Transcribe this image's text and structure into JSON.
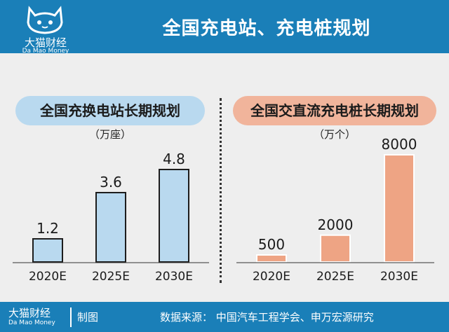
{
  "title": "全国充电站、充电桩规划",
  "brand": {
    "name_cn": "大猫财经",
    "name_en": "Da Mao Money"
  },
  "footer": {
    "credit": "制图",
    "source": "数据来源：  中国汽车工程学会、申万宏源研究"
  },
  "colors": {
    "header": "#1a7fb8",
    "left_bar": "#b9d9ef",
    "left_stroke": "#1d1d1d",
    "right_bar": "#eea484",
    "right_stroke": "#ffffff"
  },
  "chart_data": [
    {
      "type": "bar",
      "title": "全国充换电站长期规划",
      "unit": "（万座）",
      "categories": [
        "2020E",
        "2025E",
        "2030E"
      ],
      "values": [
        1.2,
        3.6,
        4.8
      ],
      "value_labels": [
        "1.2",
        "3.6",
        "4.8"
      ]
    },
    {
      "type": "bar",
      "title": "全国交直流充电桩长期规划",
      "unit": "（万个）",
      "categories": [
        "2020E",
        "2025E",
        "2030E"
      ],
      "values": [
        500,
        2000,
        8000
      ],
      "value_labels": [
        "500",
        "2000",
        "8000"
      ]
    }
  ]
}
